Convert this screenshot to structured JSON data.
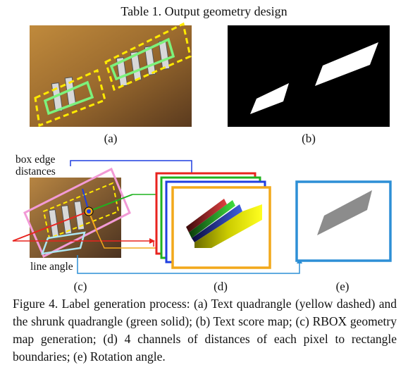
{
  "table_title": "Table 1. Output geometry design",
  "panels": {
    "a": "(a)",
    "b": "(b)",
    "c": "(c)",
    "d": "(d)",
    "e": "(e)"
  },
  "annotations": {
    "box_edge_line1": "box edge",
    "box_edge_line2": "distances",
    "line_angle": "line angle"
  },
  "figure_caption": "Figure 4. Label generation process: (a) Text quadrangle (yellow dashed) and the shrunk quadrangle (green solid); (b) Text score map; (c) RBOX geometry map generation; (d) 4 channels of distances of each pixel to rectangle boundaries; (e) Rotation angle.",
  "colors": {
    "yellow_dashed": "#ffea00",
    "green_solid": "#7cf27c",
    "pink_box": "#f29ad6",
    "red": "#e8231e",
    "green_line": "#1fb31f",
    "blue": "#1f3fe0",
    "orange": "#f2a81a",
    "light_blue": "#2d8fd6",
    "gray_shape": "#8c8c8c"
  }
}
